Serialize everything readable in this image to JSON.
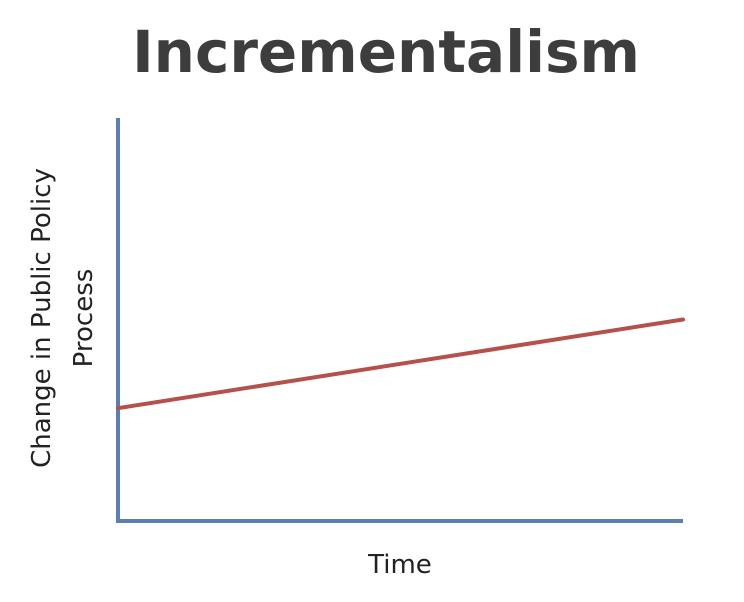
{
  "chart_data": {
    "type": "line",
    "title": "Incrementalism",
    "xlabel": "Time",
    "ylabel_lines": [
      "Change in Public Policy",
      "Process"
    ],
    "series": [
      {
        "values": [
          0.28,
          0.5
        ],
        "x": [
          0,
          1
        ]
      }
    ],
    "xlim": [
      0,
      1
    ],
    "ylim": [
      0,
      1
    ],
    "grid": false,
    "colors": {
      "axis": "#5b7fb5",
      "line": "#b5504b",
      "title": "#3d3d3d",
      "label": "#222222"
    }
  }
}
